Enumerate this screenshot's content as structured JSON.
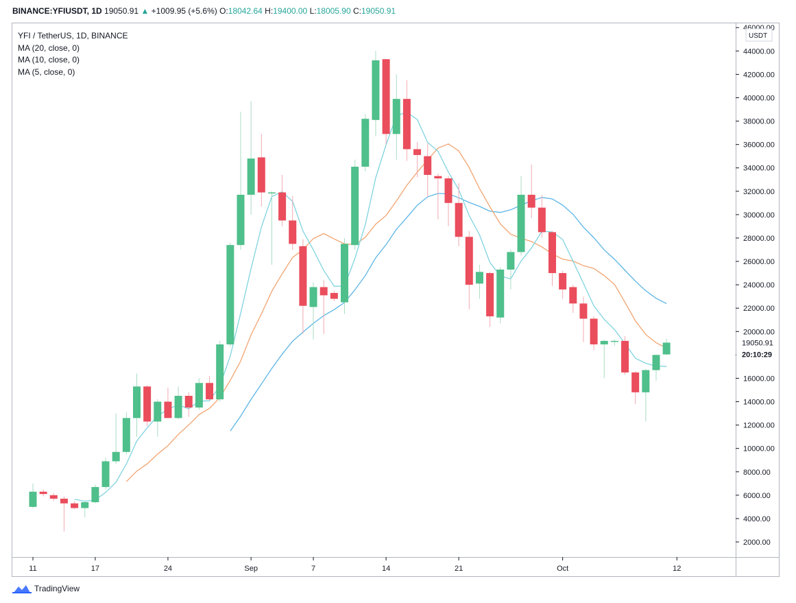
{
  "header": {
    "symbol": "BINANCE:YFIUSDT, 1D",
    "last": "19050.91",
    "arrow": "▲",
    "change": "+1009.95 (+5.6%)",
    "open_label": "O:",
    "open": "18042.64",
    "high_label": "H:",
    "high": "19400.00",
    "low_label": "L:",
    "low": "18005.90",
    "close_label": "C:",
    "close": "19050.91"
  },
  "legend": {
    "title": "YFI / TetherUS, 1D, BINANCE",
    "ma20": "MA (20, close, 0)",
    "ma10": "MA (10, close, 0)",
    "ma5": "MA (5, close, 0)"
  },
  "footer": {
    "brand": "TradingView"
  },
  "colors": {
    "up": "#4fbf8b",
    "down": "#ea4d5c",
    "ma5": "#7fd3e0",
    "ma10": "#f2a470",
    "ma20": "#5bb5e6",
    "grid": "#e6e6e6",
    "axis": "#131722"
  },
  "chart_data": {
    "type": "candlestick",
    "unit": "USDT",
    "ylim": [
      0,
      46000
    ],
    "y_ticks": [
      2000,
      4000,
      6000,
      8000,
      10000,
      12000,
      14000,
      16000,
      18000,
      20000,
      22000,
      24000,
      26000,
      28000,
      30000,
      32000,
      34000,
      36000,
      38000,
      40000,
      42000,
      44000,
      46000
    ],
    "y_tick_labels": [
      "2000.00",
      "4000.00",
      "6000.00",
      "8000.00",
      "10000.00",
      "12000.00",
      "14000.00",
      "16000.00",
      "18000.00",
      "20000.00",
      "22000.00",
      "24000.00",
      "26000.00",
      "28000.00",
      "30000.00",
      "32000.00",
      "34000.00",
      "36000.00",
      "38000.00",
      "40000.00",
      "42000.00",
      "44000.00",
      "46000.00"
    ],
    "x_ticks": [
      {
        "day": 1,
        "label": "11"
      },
      {
        "day": 7,
        "label": "17"
      },
      {
        "day": 14,
        "label": "24"
      },
      {
        "day": 22,
        "label": "Sep"
      },
      {
        "day": 28,
        "label": "7"
      },
      {
        "day": 35,
        "label": "14"
      },
      {
        "day": 42,
        "label": "21"
      },
      {
        "day": 52,
        "label": "Oct"
      },
      {
        "day": 63,
        "label": "12"
      }
    ],
    "last_price_label": "19050.91",
    "countdown_label": "20:10:29",
    "last_price": 19050.91,
    "candles": [
      {
        "d": 1,
        "o": 5000,
        "h": 7000,
        "l": 4900,
        "c": 6300
      },
      {
        "d": 2,
        "o": 6300,
        "h": 6500,
        "l": 5900,
        "c": 6100
      },
      {
        "d": 3,
        "o": 6000,
        "h": 6200,
        "l": 5500,
        "c": 5700
      },
      {
        "d": 4,
        "o": 5700,
        "h": 5900,
        "l": 2900,
        "c": 5300
      },
      {
        "d": 5,
        "o": 5300,
        "h": 5500,
        "l": 4800,
        "c": 4900
      },
      {
        "d": 6,
        "o": 4900,
        "h": 5500,
        "l": 4100,
        "c": 5400
      },
      {
        "d": 7,
        "o": 5400,
        "h": 6900,
        "l": 5300,
        "c": 6700
      },
      {
        "d": 8,
        "o": 6700,
        "h": 9200,
        "l": 6500,
        "c": 8900
      },
      {
        "d": 9,
        "o": 8900,
        "h": 13000,
        "l": 8700,
        "c": 9700
      },
      {
        "d": 10,
        "o": 9700,
        "h": 13100,
        "l": 9500,
        "c": 12600
      },
      {
        "d": 11,
        "o": 12600,
        "h": 16400,
        "l": 11000,
        "c": 15300
      },
      {
        "d": 12,
        "o": 15300,
        "h": 15400,
        "l": 11900,
        "c": 12300
      },
      {
        "d": 13,
        "o": 12300,
        "h": 14200,
        "l": 11000,
        "c": 14000
      },
      {
        "d": 14,
        "o": 14000,
        "h": 15200,
        "l": 12600,
        "c": 12600
      },
      {
        "d": 15,
        "o": 12600,
        "h": 15300,
        "l": 12500,
        "c": 14500
      },
      {
        "d": 16,
        "o": 14500,
        "h": 14800,
        "l": 12700,
        "c": 13500
      },
      {
        "d": 17,
        "o": 13500,
        "h": 16000,
        "l": 13300,
        "c": 15600
      },
      {
        "d": 18,
        "o": 15600,
        "h": 16200,
        "l": 14100,
        "c": 14200
      },
      {
        "d": 19,
        "o": 14200,
        "h": 19200,
        "l": 14000,
        "c": 18900
      },
      {
        "d": 20,
        "o": 18900,
        "h": 27600,
        "l": 18700,
        "c": 27400
      },
      {
        "d": 21,
        "o": 27400,
        "h": 38800,
        "l": 27000,
        "c": 31700
      },
      {
        "d": 22,
        "o": 31700,
        "h": 39700,
        "l": 30000,
        "c": 34800
      },
      {
        "d": 23,
        "o": 34900,
        "h": 36900,
        "l": 30700,
        "c": 31900
      },
      {
        "d": 24,
        "o": 31900,
        "h": 32000,
        "l": 25700,
        "c": 31900
      },
      {
        "d": 25,
        "o": 31900,
        "h": 33400,
        "l": 29000,
        "c": 29500
      },
      {
        "d": 26,
        "o": 29500,
        "h": 31600,
        "l": 27000,
        "c": 27500
      },
      {
        "d": 27,
        "o": 27300,
        "h": 27900,
        "l": 19800,
        "c": 22200
      },
      {
        "d": 28,
        "o": 22100,
        "h": 24200,
        "l": 19300,
        "c": 23800
      },
      {
        "d": 29,
        "o": 23800,
        "h": 24400,
        "l": 19800,
        "c": 23100
      },
      {
        "d": 30,
        "o": 23300,
        "h": 23500,
        "l": 22600,
        "c": 22800
      },
      {
        "d": 31,
        "o": 22500,
        "h": 28000,
        "l": 21500,
        "c": 27500
      },
      {
        "d": 32,
        "o": 27400,
        "h": 34700,
        "l": 27000,
        "c": 34100
      },
      {
        "d": 33,
        "o": 34100,
        "h": 38600,
        "l": 33700,
        "c": 38200
      },
      {
        "d": 34,
        "o": 38100,
        "h": 44000,
        "l": 36700,
        "c": 43200
      },
      {
        "d": 35,
        "o": 43300,
        "h": 43300,
        "l": 36000,
        "c": 36900
      },
      {
        "d": 36,
        "o": 36900,
        "h": 42000,
        "l": 34700,
        "c": 39900
      },
      {
        "d": 37,
        "o": 39900,
        "h": 41500,
        "l": 34600,
        "c": 35600
      },
      {
        "d": 38,
        "o": 35600,
        "h": 36200,
        "l": 33200,
        "c": 35100
      },
      {
        "d": 39,
        "o": 35000,
        "h": 36100,
        "l": 31500,
        "c": 33400
      },
      {
        "d": 40,
        "o": 33300,
        "h": 33500,
        "l": 29600,
        "c": 33100
      },
      {
        "d": 41,
        "o": 33100,
        "h": 33300,
        "l": 29000,
        "c": 31000
      },
      {
        "d": 42,
        "o": 31000,
        "h": 32700,
        "l": 27300,
        "c": 28100
      },
      {
        "d": 43,
        "o": 28100,
        "h": 28600,
        "l": 21900,
        "c": 24000
      },
      {
        "d": 44,
        "o": 24100,
        "h": 25700,
        "l": 22800,
        "c": 25100
      },
      {
        "d": 45,
        "o": 25000,
        "h": 25100,
        "l": 20400,
        "c": 21300
      },
      {
        "d": 46,
        "o": 21200,
        "h": 25500,
        "l": 20700,
        "c": 25300
      },
      {
        "d": 47,
        "o": 25300,
        "h": 27000,
        "l": 23600,
        "c": 26800
      },
      {
        "d": 48,
        "o": 26800,
        "h": 33300,
        "l": 26500,
        "c": 31700
      },
      {
        "d": 49,
        "o": 31700,
        "h": 34300,
        "l": 29700,
        "c": 30600
      },
      {
        "d": 50,
        "o": 30600,
        "h": 31700,
        "l": 28000,
        "c": 28500
      },
      {
        "d": 51,
        "o": 28500,
        "h": 28600,
        "l": 23900,
        "c": 25000
      },
      {
        "d": 52,
        "o": 25000,
        "h": 25200,
        "l": 22800,
        "c": 23600
      },
      {
        "d": 53,
        "o": 23800,
        "h": 24000,
        "l": 21600,
        "c": 22400
      },
      {
        "d": 54,
        "o": 22400,
        "h": 23000,
        "l": 19100,
        "c": 21100
      },
      {
        "d": 55,
        "o": 21100,
        "h": 21300,
        "l": 18400,
        "c": 18900
      },
      {
        "d": 56,
        "o": 18900,
        "h": 19300,
        "l": 16000,
        "c": 19200
      },
      {
        "d": 57,
        "o": 19200,
        "h": 19300,
        "l": 18800,
        "c": 19200
      },
      {
        "d": 58,
        "o": 19200,
        "h": 19600,
        "l": 16300,
        "c": 16500
      },
      {
        "d": 59,
        "o": 16500,
        "h": 16600,
        "l": 13800,
        "c": 14800
      },
      {
        "d": 60,
        "o": 14800,
        "h": 16800,
        "l": 12300,
        "c": 16700
      },
      {
        "d": 61,
        "o": 16700,
        "h": 18000,
        "l": 15800,
        "c": 18000
      },
      {
        "d": 62,
        "o": 18042.64,
        "h": 19400,
        "l": 18005.9,
        "c": 19050.91
      }
    ]
  }
}
